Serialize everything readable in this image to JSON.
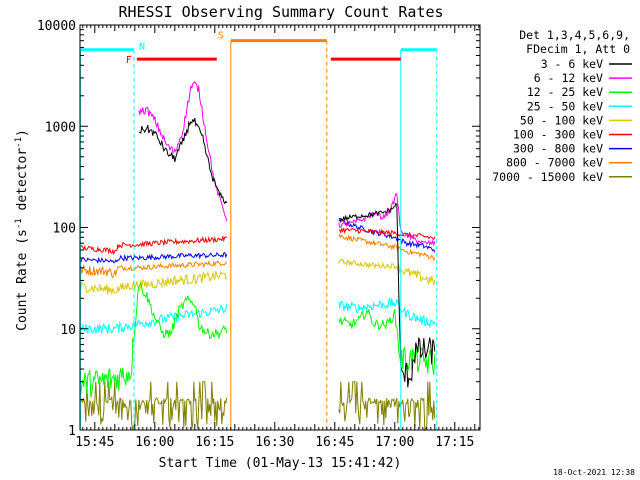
{
  "chart_data": {
    "type": "line",
    "title": "RHESSI Observing Summary Count Rates",
    "xlabel": "Start Time (01-May-13 15:41:42)",
    "ylabel": "Count Rate (s",
    "ylabel_sup": "-1",
    "ylabel_tail": " detector",
    "ylabel_end": ")",
    "y_scale": "log",
    "ylim": [
      1,
      10000
    ],
    "xlim_minutes": [
      -3.7,
      96.3
    ],
    "x_ticks": [
      {
        "label": "15:45",
        "min": 0
      },
      {
        "label": "16:00",
        "min": 15
      },
      {
        "label": "16:15",
        "min": 30
      },
      {
        "label": "16:30",
        "min": 45
      },
      {
        "label": "16:45",
        "min": 60
      },
      {
        "label": "17:00",
        "min": 75
      },
      {
        "label": "17:15",
        "min": 90
      }
    ],
    "y_ticks": [
      {
        "label": "1",
        "v": 1
      },
      {
        "label": "10",
        "v": 10
      },
      {
        "label": "100",
        "v": 100
      },
      {
        "label": "1000",
        "v": 1000
      },
      {
        "label": "10000",
        "v": 10000
      }
    ],
    "legend_header": [
      "Det 1,3,4,5,6,9,",
      "FDecim 1, Att 0"
    ],
    "legend_position": "right",
    "series": [
      {
        "name": "3 - 6 keV",
        "color": "#000000",
        "seg1": [
          [
            11,
            900
          ],
          [
            13,
            950
          ],
          [
            15,
            850
          ],
          [
            18,
            550
          ],
          [
            20,
            480
          ],
          [
            22,
            700
          ],
          [
            24,
            1150
          ],
          [
            25,
            1100
          ],
          [
            27,
            750
          ],
          [
            29,
            350
          ],
          [
            31,
            220
          ],
          [
            33,
            170
          ]
        ],
        "seg2": [
          [
            61,
            120
          ],
          [
            66,
            130
          ],
          [
            70,
            135
          ],
          [
            72,
            140
          ],
          [
            74,
            150
          ],
          [
            75.5,
            170
          ],
          [
            76.5,
            3.5
          ],
          [
            79,
            3.5
          ],
          [
            80,
            6
          ],
          [
            85,
            6
          ]
        ]
      },
      {
        "name": "6 - 12 keV",
        "color": "#ff00ff",
        "seg1": [
          [
            11,
            1400
          ],
          [
            13,
            1450
          ],
          [
            15,
            1150
          ],
          [
            18,
            650
          ],
          [
            20,
            550
          ],
          [
            22,
            900
          ],
          [
            24,
            2400
          ],
          [
            25,
            2600
          ],
          [
            26,
            2300
          ],
          [
            28,
            750
          ],
          [
            30,
            270
          ],
          [
            33,
            120
          ]
        ],
        "seg2": [
          [
            61,
            105
          ],
          [
            64,
            110
          ],
          [
            67,
            120
          ],
          [
            70,
            140
          ],
          [
            72,
            125
          ],
          [
            74,
            150
          ],
          [
            75.5,
            220
          ],
          [
            76.5,
            90
          ],
          [
            79,
            80
          ],
          [
            82,
            70
          ],
          [
            85,
            70
          ]
        ]
      },
      {
        "name": "12 - 25 keV",
        "color": "#00ff00",
        "seg1": [
          [
            -3.5,
            2.8
          ],
          [
            5,
            3.2
          ],
          [
            9,
            3.8
          ],
          [
            11,
            28
          ],
          [
            13,
            21
          ],
          [
            15,
            13
          ],
          [
            17,
            9
          ],
          [
            19,
            9
          ],
          [
            21,
            15
          ],
          [
            23,
            19
          ],
          [
            25,
            18
          ],
          [
            26,
            11
          ],
          [
            28,
            9
          ],
          [
            31,
            9
          ],
          [
            33,
            10
          ]
        ],
        "seg2": [
          [
            61,
            12
          ],
          [
            64,
            11
          ],
          [
            66,
            12
          ],
          [
            68,
            15
          ],
          [
            70,
            11
          ],
          [
            73,
            11
          ],
          [
            75,
            14
          ],
          [
            76.5,
            5
          ],
          [
            80,
            5
          ],
          [
            85,
            4.5
          ]
        ]
      },
      {
        "name": "25 - 50 keV",
        "color": "#00ffff",
        "seg1": [
          [
            -3.5,
            10
          ],
          [
            5,
            10
          ],
          [
            10,
            11
          ],
          [
            15,
            12
          ],
          [
            20,
            13
          ],
          [
            25,
            14
          ],
          [
            30,
            15
          ],
          [
            33,
            16
          ]
        ],
        "seg2": [
          [
            61,
            17
          ],
          [
            66,
            16
          ],
          [
            70,
            17
          ],
          [
            75,
            18
          ],
          [
            78,
            14
          ],
          [
            82,
            12
          ],
          [
            85,
            11.5
          ]
        ]
      },
      {
        "name": "50 - 100 keV",
        "color": "#d8c800",
        "seg1": [
          [
            -3.5,
            26
          ],
          [
            5,
            24
          ],
          [
            9,
            27
          ],
          [
            11,
            27
          ],
          [
            15,
            28
          ],
          [
            20,
            30
          ],
          [
            25,
            31
          ],
          [
            30,
            33
          ],
          [
            33,
            34
          ]
        ],
        "seg2": [
          [
            61,
            46
          ],
          [
            66,
            44
          ],
          [
            70,
            42
          ],
          [
            75,
            42
          ],
          [
            78,
            36
          ],
          [
            82,
            32
          ],
          [
            85,
            29
          ]
        ]
      },
      {
        "name": "100 - 300 keV",
        "color": "#ff0000",
        "seg1": [
          [
            -3.5,
            63
          ],
          [
            3,
            60
          ],
          [
            5,
            58
          ],
          [
            6,
            67
          ],
          [
            11,
            68
          ],
          [
            15,
            70
          ],
          [
            20,
            72
          ],
          [
            25,
            74
          ],
          [
            30,
            76
          ],
          [
            33,
            78
          ]
        ],
        "seg2": [
          [
            61,
            95
          ],
          [
            66,
            93
          ],
          [
            70,
            90
          ],
          [
            75,
            88
          ],
          [
            78,
            84
          ],
          [
            82,
            82
          ],
          [
            85,
            78
          ]
        ]
      },
      {
        "name": "300 - 800 keV",
        "color": "#0000ff",
        "seg1": [
          [
            -3.5,
            48
          ],
          [
            3,
            47
          ],
          [
            5,
            45
          ],
          [
            6,
            50
          ],
          [
            11,
            50
          ],
          [
            15,
            51
          ],
          [
            20,
            52
          ],
          [
            25,
            53
          ],
          [
            30,
            53
          ],
          [
            33,
            54
          ]
        ],
        "seg2": [
          [
            61,
            118
          ],
          [
            66,
            100
          ],
          [
            70,
            90
          ],
          [
            75,
            80
          ],
          [
            78,
            70
          ],
          [
            82,
            66
          ],
          [
            85,
            60
          ]
        ]
      },
      {
        "name": "800 - 7000 keV",
        "color": "#ff8000",
        "seg1": [
          [
            -3.5,
            38
          ],
          [
            3,
            37
          ],
          [
            5,
            35
          ],
          [
            6,
            40
          ],
          [
            11,
            40
          ],
          [
            15,
            41
          ],
          [
            20,
            42
          ],
          [
            25,
            43
          ],
          [
            30,
            44
          ],
          [
            33,
            45
          ]
        ],
        "seg2": [
          [
            61,
            83
          ],
          [
            66,
            75
          ],
          [
            70,
            70
          ],
          [
            75,
            64
          ],
          [
            78,
            58
          ],
          [
            82,
            54
          ],
          [
            85,
            50
          ]
        ]
      },
      {
        "name": "7000 - 15000 keV",
        "color": "#808000",
        "seg1": [
          [
            -3.5,
            1.8
          ],
          [
            10,
            1.8
          ],
          [
            20,
            1.8
          ],
          [
            33,
            1.8
          ]
        ],
        "seg2": [
          [
            61,
            1.8
          ],
          [
            75,
            1.8
          ],
          [
            85,
            2.2
          ]
        ]
      }
    ],
    "flags": [
      {
        "label": "N",
        "color": "#00ffff",
        "y_pos": 5700,
        "spans": [
          [
            -3.5,
            9.8
          ],
          [
            76.5,
            85.5
          ]
        ]
      },
      {
        "label": "F",
        "color": "#ff0000",
        "y_pos": 4600,
        "spans": [
          [
            10.5,
            30.5
          ],
          [
            59,
            76.5
          ]
        ]
      },
      {
        "label": "S",
        "color": "#ff8000",
        "y_pos": 7000,
        "spans": [
          [
            34,
            58
          ]
        ]
      }
    ],
    "footer_date": "18-Oct-2021 12:38"
  }
}
